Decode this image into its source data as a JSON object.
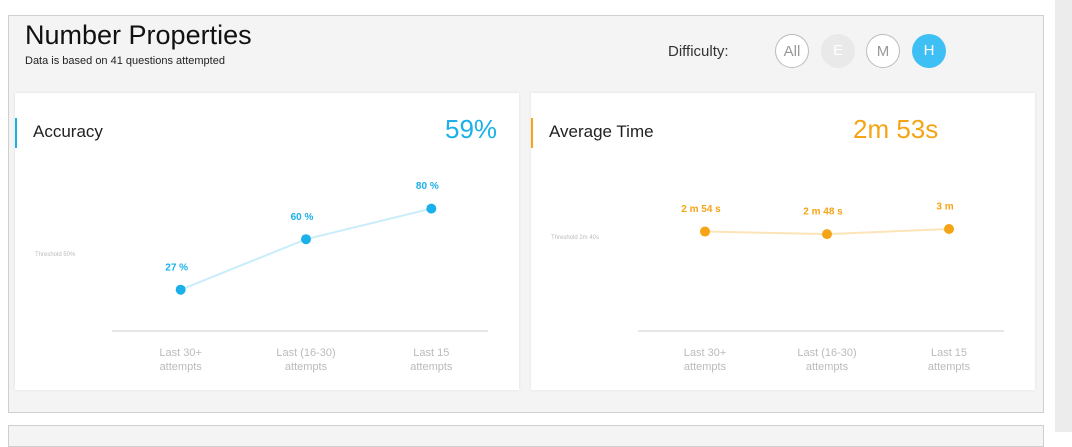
{
  "header": {
    "title": "Number Properties",
    "subtitle": "Data is based on 41 questions attempted"
  },
  "difficulty": {
    "label": "Difficulty:",
    "options": [
      {
        "label": "All",
        "state": "outline"
      },
      {
        "label": "E",
        "state": "disabled"
      },
      {
        "label": "M",
        "state": "outline"
      },
      {
        "label": "H",
        "state": "active"
      }
    ]
  },
  "panels": [
    {
      "title": "Accuracy",
      "summary": "59%",
      "color": "#1ab0ea",
      "line_color": "#c9edfb",
      "threshold_label": "Threshold 50%",
      "chart": {
        "type": "line",
        "categories": [
          "Last 30+ attempts",
          "Last (16-30) attempts",
          "Last 15 attempts"
        ],
        "values": [
          27,
          60,
          80
        ],
        "value_labels": [
          "27 %",
          "60 %",
          "80 %"
        ],
        "threshold": 50,
        "ylim": [
          0,
          100
        ]
      }
    },
    {
      "title": "Average Time",
      "summary": "2m 53s",
      "color": "#f5a416",
      "line_color": "#fde4b8",
      "threshold_label": "Threshold 2m 40s",
      "chart": {
        "type": "line",
        "categories": [
          "Last 30+ attempts",
          "Last (16-30) attempts",
          "Last 15 attempts"
        ],
        "values": [
          174,
          168,
          180
        ],
        "value_labels": [
          "2 m 54 s",
          "2 m 48 s",
          "3 m"
        ],
        "threshold": 160,
        "ylim": [
          -60,
          300
        ]
      }
    }
  ]
}
